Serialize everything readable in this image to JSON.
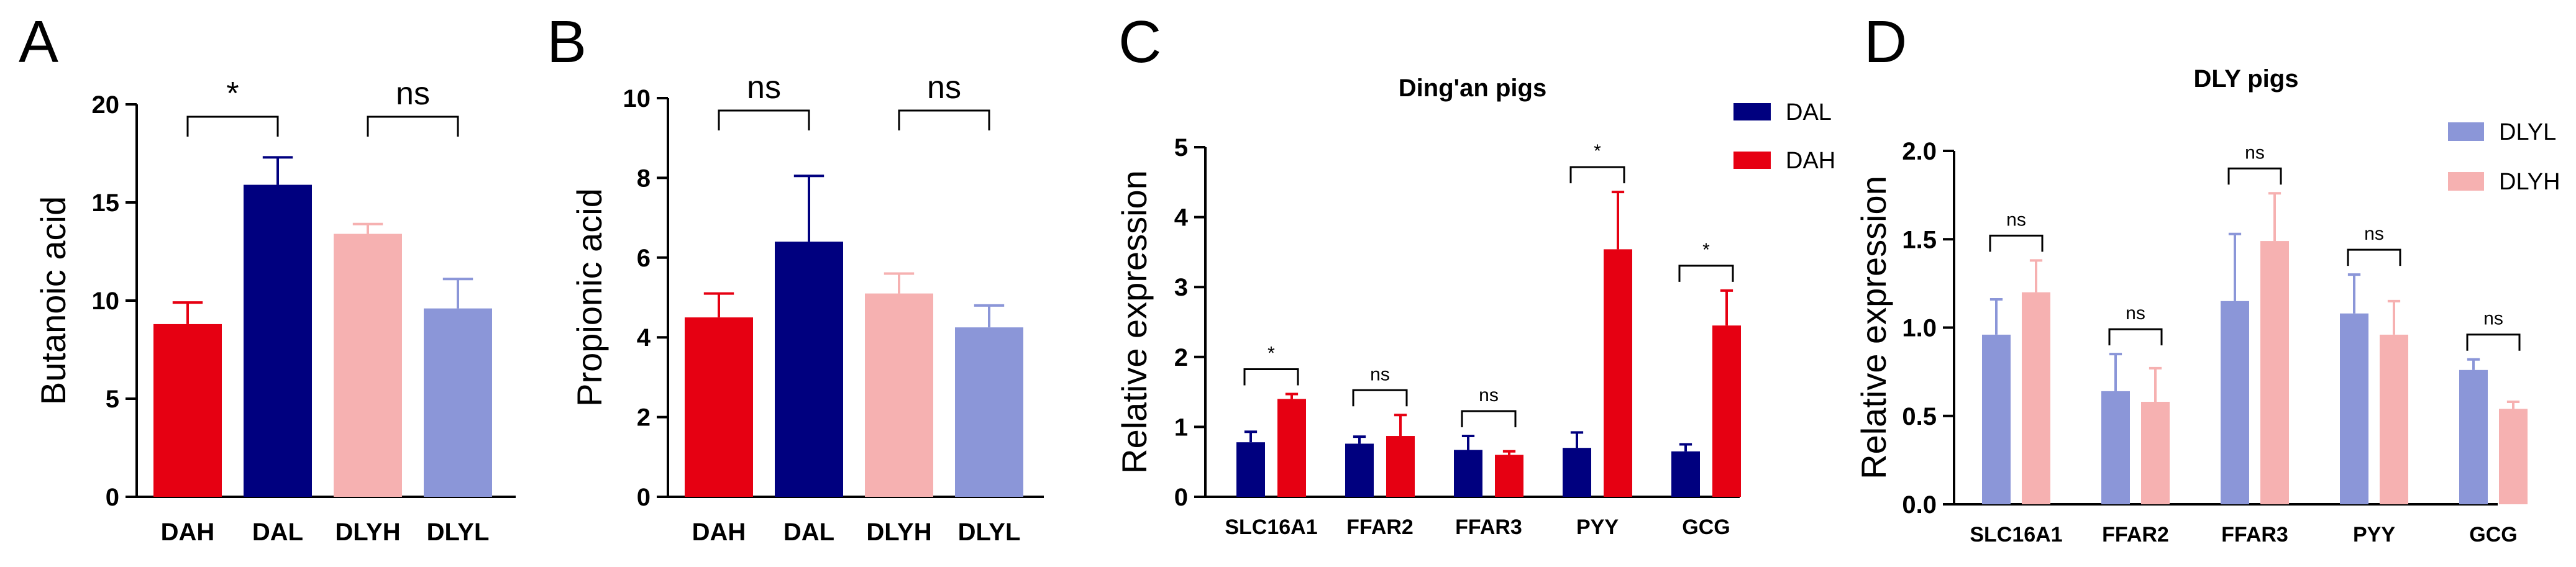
{
  "chart_data": [
    {
      "panel": "A",
      "type": "bar",
      "title": "",
      "ylabel": "Butanoic acid",
      "ylim": [
        0,
        20
      ],
      "yticks": [
        "0",
        "5",
        "10",
        "15",
        "20"
      ],
      "categories": [
        "DAH",
        "DAL",
        "DLYH",
        "DLYL"
      ],
      "values": [
        8.8,
        15.9,
        13.4,
        9.6
      ],
      "errors": [
        1.1,
        1.4,
        0.5,
        1.5
      ],
      "colors": [
        "#e60012",
        "#00007f",
        "#f6b1b1",
        "#8b96d8"
      ],
      "significance": [
        {
          "label": "*",
          "between": [
            0,
            1
          ]
        },
        {
          "label": "ns",
          "between": [
            2,
            3
          ]
        }
      ]
    },
    {
      "panel": "B",
      "type": "bar",
      "title": "",
      "ylabel": "Propionic acid",
      "ylim": [
        0,
        10
      ],
      "yticks": [
        "0",
        "2",
        "4",
        "6",
        "8",
        "10"
      ],
      "categories": [
        "DAH",
        "DAL",
        "DLYH",
        "DLYL"
      ],
      "values": [
        4.5,
        6.4,
        5.1,
        4.25
      ],
      "errors": [
        0.6,
        1.65,
        0.5,
        0.55
      ],
      "colors": [
        "#e60012",
        "#00007f",
        "#f6b1b1",
        "#8b96d8"
      ],
      "significance": [
        {
          "label": "ns",
          "between": [
            0,
            1
          ]
        },
        {
          "label": "ns",
          "between": [
            2,
            3
          ]
        }
      ]
    },
    {
      "panel": "C",
      "type": "bar",
      "title": "Ding'an pigs",
      "ylabel": "Relative expression",
      "ylim": [
        0,
        5
      ],
      "yticks": [
        "0",
        "1",
        "2",
        "3",
        "4",
        "5"
      ],
      "categories": [
        "SLC16A1",
        "FFAR2",
        "FFAR3",
        "PYY",
        "GCG"
      ],
      "series": [
        {
          "name": "DAL",
          "color": "#00007f",
          "values": [
            0.78,
            0.76,
            0.67,
            0.7,
            0.65
          ],
          "errors": [
            0.15,
            0.1,
            0.2,
            0.22,
            0.1
          ]
        },
        {
          "name": "DAH",
          "color": "#e60012",
          "values": [
            1.4,
            0.87,
            0.6,
            3.54,
            2.45
          ],
          "errors": [
            0.07,
            0.3,
            0.05,
            0.82,
            0.5
          ]
        }
      ],
      "significance": [
        "*",
        "ns",
        "ns",
        "*",
        "*"
      ]
    },
    {
      "panel": "D",
      "type": "bar",
      "title": "DLY pigs",
      "ylabel": "Relative expression",
      "ylim": [
        0,
        2
      ],
      "yticks": [
        "0.0",
        "0.5",
        "1.0",
        "1.5",
        "2.0"
      ],
      "categories": [
        "SLC16A1",
        "FFAR2",
        "FFAR3",
        "PYY",
        "GCG"
      ],
      "series": [
        {
          "name": "DLYL",
          "color": "#8b96d8",
          "values": [
            0.96,
            0.64,
            1.15,
            1.08,
            0.76
          ],
          "errors": [
            0.2,
            0.21,
            0.38,
            0.22,
            0.06
          ]
        },
        {
          "name": "DLYH",
          "color": "#f6b1b1",
          "values": [
            1.2,
            0.58,
            1.49,
            0.96,
            0.54
          ],
          "errors": [
            0.18,
            0.19,
            0.27,
            0.19,
            0.04
          ]
        }
      ],
      "significance": [
        "ns",
        "ns",
        "ns",
        "ns",
        "ns"
      ]
    }
  ]
}
